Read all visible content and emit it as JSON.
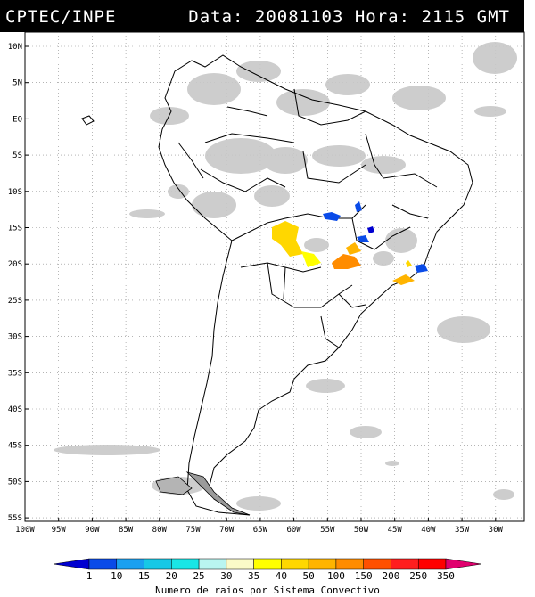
{
  "header": {
    "source": "CPTEC/INPE",
    "datetime": "Data: 20081103 Hora: 2115 GMT"
  },
  "map": {
    "lat_labels": [
      "10N",
      "5N",
      "EQ",
      "5S",
      "10S",
      "15S",
      "20S",
      "25S",
      "30S",
      "35S",
      "40S",
      "45S",
      "50S",
      "55S"
    ],
    "lon_labels": [
      "100W",
      "95W",
      "90W",
      "85W",
      "80W",
      "75W",
      "70W",
      "65W",
      "60W",
      "55W",
      "50W",
      "45W",
      "40W",
      "35W",
      "30W"
    ],
    "grid": "dotted",
    "cloud_color": "#c8c8c8",
    "outline_color": "#000000"
  },
  "colorbar": {
    "labels": [
      "1",
      "10",
      "15",
      "20",
      "25",
      "30",
      "35",
      "40",
      "50",
      "100",
      "150",
      "200",
      "250",
      "350"
    ],
    "colors": [
      "#0000d0",
      "#0a4be8",
      "#1aa0f0",
      "#17c8e6",
      "#19e6e6",
      "#b9f5f0",
      "#fafac8",
      "#ffff00",
      "#ffd700",
      "#ffb400",
      "#ff8c00",
      "#ff5000",
      "#ff1e1e",
      "#ff0000",
      "#e0006e"
    ],
    "title": "Numero de raios por Sistema Convectivo"
  },
  "convective_systems": [
    {
      "color": "#ffd700",
      "level": "40-50"
    },
    {
      "color": "#ffff00",
      "level": "35-40"
    },
    {
      "color": "#ff8c00",
      "level": "150-200"
    },
    {
      "color": "#ffb400",
      "level": "100-150"
    },
    {
      "color": "#0a4be8",
      "level": "10-15"
    },
    {
      "color": "#0000d0",
      "level": "1-10"
    }
  ]
}
